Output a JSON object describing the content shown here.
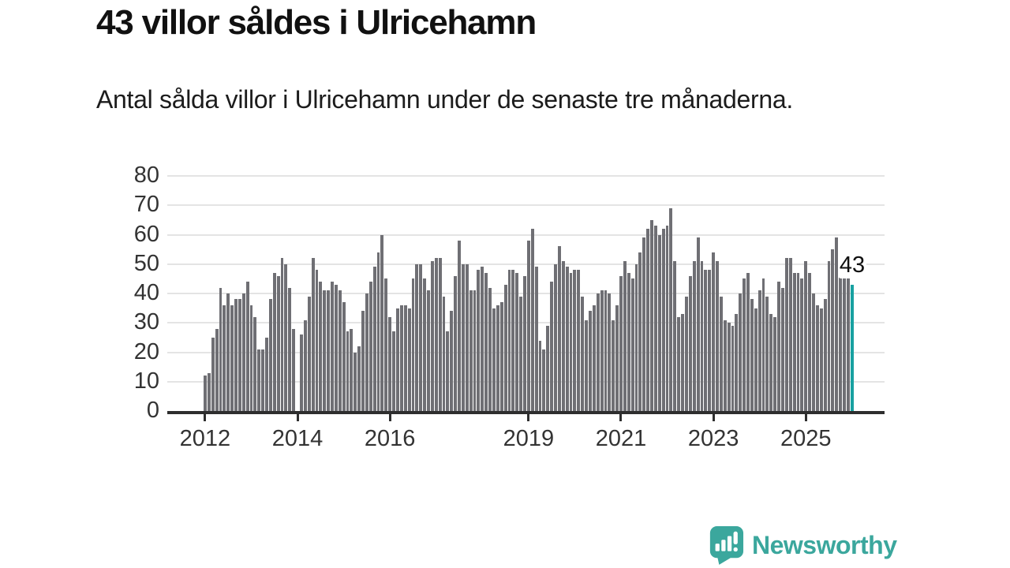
{
  "header": {
    "title": "43 villor såldes i Ulricehamn",
    "subtitle": "Antal sålda villor i Ulricehamn under de senaste tre månaderna."
  },
  "chart_data": {
    "type": "bar",
    "title": "43 villor såldes i Ulricehamn",
    "subtitle": "Antal sålda villor i Ulricehamn under de senaste tre månaderna.",
    "xlabel": "",
    "ylabel": "",
    "ylim": [
      0,
      80
    ],
    "y_ticks": [
      0,
      10,
      20,
      30,
      40,
      50,
      60,
      70,
      80
    ],
    "grid": "horizontal",
    "legend": "none",
    "x_tick_labels": [
      "2012",
      "2014",
      "2016",
      "2019",
      "2021",
      "2023",
      "2025"
    ],
    "x_tick_indices": [
      0,
      24,
      48,
      84,
      108,
      132,
      156
    ],
    "bar_color": "#6f6f74",
    "values": [
      12,
      13,
      25,
      28,
      42,
      36,
      40,
      36,
      38,
      38,
      40,
      44,
      36,
      32,
      21,
      21,
      25,
      38,
      47,
      46,
      52,
      50,
      42,
      28,
      0,
      26,
      31,
      39,
      52,
      48,
      44,
      41,
      41,
      44,
      43,
      41,
      37,
      27,
      28,
      20,
      22,
      34,
      40,
      44,
      49,
      54,
      60,
      45,
      32,
      27,
      35,
      36,
      36,
      35,
      45,
      50,
      50,
      45,
      41,
      51,
      52,
      52,
      39,
      27,
      34,
      46,
      58,
      50,
      50,
      41,
      41,
      48,
      49,
      47,
      42,
      35,
      36,
      37,
      43,
      48,
      48,
      47,
      39,
      46,
      58,
      62,
      49,
      24,
      21,
      29,
      44,
      50,
      56,
      51,
      49,
      47,
      48,
      48,
      39,
      31,
      34,
      36,
      40,
      41,
      41,
      40,
      31,
      36,
      46,
      51,
      47,
      45,
      50,
      54,
      59,
      62,
      65,
      63,
      60,
      62,
      63,
      69,
      51,
      32,
      33,
      39,
      46,
      51,
      59,
      51,
      48,
      48,
      54,
      51,
      39,
      31,
      30,
      29,
      33,
      40,
      45,
      47,
      38,
      35,
      41,
      45,
      39,
      33,
      32,
      44,
      42,
      52,
      52,
      47,
      47,
      45,
      51,
      47,
      40,
      36,
      35,
      38,
      51,
      55,
      59,
      48,
      47,
      46,
      43
    ],
    "highlight": {
      "index": 168,
      "value": 43,
      "label": "43",
      "color": "#18a1a1"
    }
  },
  "footer": {
    "brand": "Newsworthy",
    "brand_color": "#3ba79d"
  }
}
